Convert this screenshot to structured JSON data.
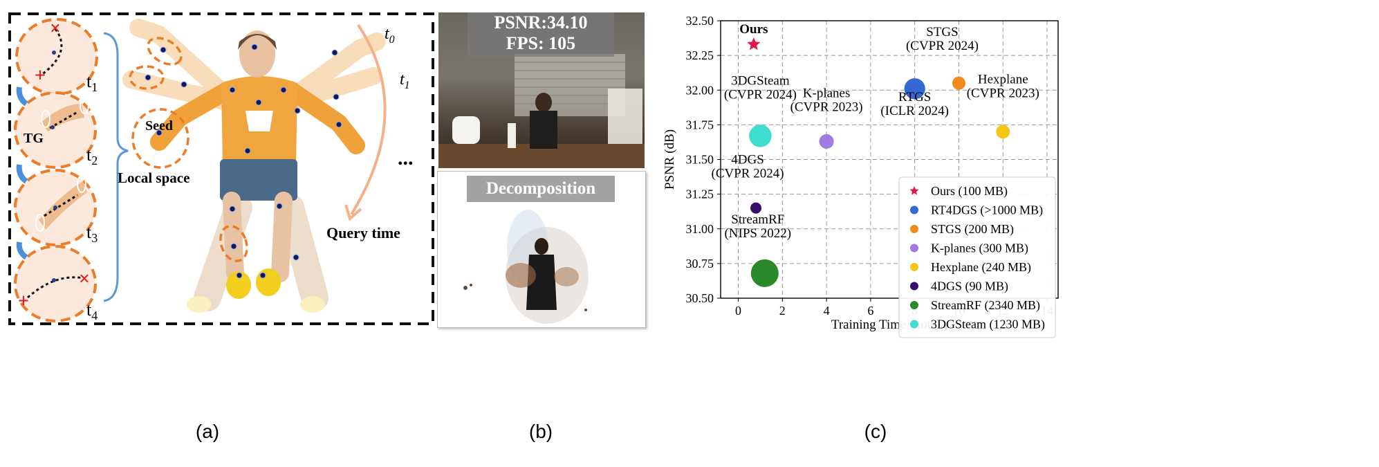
{
  "panel_a": {
    "labels": {
      "t1": "t",
      "t1_sub": "1",
      "t2": "t",
      "t2_sub": "2",
      "t3": "t",
      "t3_sub": "3",
      "t4": "t",
      "t4_sub": "4",
      "tg": "TG",
      "seed": "Seed",
      "local_space": "Local space",
      "query_time": "Query time",
      "t0_top": "t",
      "t0_top_sub": "0",
      "t1_top": "t",
      "t1_top_sub": "1",
      "ellipsis": "..."
    },
    "caption": "(a)"
  },
  "panel_b": {
    "psnr": "PSNR:34.10",
    "fps": "FPS: 105",
    "decomposition": "Decomposition",
    "caption": "(b)"
  },
  "panel_c": {
    "caption": "(c)"
  },
  "chart_data": {
    "type": "scatter",
    "xlabel": "Training Time (hours)",
    "ylabel": "PSNR (dB)",
    "xlim": [
      -0.8,
      14.5
    ],
    "ylim": [
      30.5,
      32.5
    ],
    "xticks": [
      0,
      2,
      4,
      6,
      8,
      10,
      12,
      14
    ],
    "yticks": [
      30.5,
      30.75,
      31.0,
      31.25,
      31.5,
      31.75,
      32.0,
      32.25,
      32.5
    ],
    "ytick_labels": [
      "30.50",
      "30.75",
      "31.00",
      "31.25",
      "31.50",
      "31.75",
      "32.00",
      "32.25",
      "32.50"
    ],
    "grid": true,
    "legend_position": "lower-right",
    "series": [
      {
        "name": "Ours (100 MB)",
        "x": 0.7,
        "y": 32.33,
        "color": "#d81b4a",
        "marker": "star",
        "size_mb": 100,
        "annotation": [
          "Ours"
        ],
        "annotation_bold": true
      },
      {
        "name": "RT4DGS (>1000 MB)",
        "x": 8.0,
        "y": 32.01,
        "color": "#3568d4",
        "marker": "circle",
        "size_mb": 1000,
        "annotation": [
          "RTGS",
          "(ICLR 2024)"
        ]
      },
      {
        "name": "STGS (200 MB)",
        "x": 10.0,
        "y": 32.05,
        "color": "#f08a1c",
        "marker": "circle",
        "size_mb": 200,
        "annotation": [
          "STGS",
          "(CVPR 2024)"
        ]
      },
      {
        "name": "K-planes (300 MB)",
        "x": 4.0,
        "y": 31.63,
        "color": "#a07ce0",
        "marker": "circle",
        "size_mb": 300,
        "annotation": [
          "K-planes",
          "(CVPR 2023)"
        ]
      },
      {
        "name": "Hexplane (240 MB)",
        "x": 12.0,
        "y": 31.7,
        "color": "#f5c518",
        "marker": "circle",
        "size_mb": 240,
        "annotation": [
          "Hexplane",
          "(CVPR 2023)"
        ]
      },
      {
        "name": "4DGS (90 MB)",
        "x": 0.8,
        "y": 31.15,
        "color": "#3b0e6e",
        "marker": "circle",
        "size_mb": 90,
        "annotation": [
          "4DGS",
          "(CVPR 2024)"
        ]
      },
      {
        "name": "StreamRF (2340 MB)",
        "x": 1.2,
        "y": 30.68,
        "color": "#2a8a2a",
        "marker": "circle",
        "size_mb": 2340,
        "annotation": [
          "StreamRF",
          "(NIPS 2022)"
        ]
      },
      {
        "name": "3DGSteam (1230 MB)",
        "x": 1.0,
        "y": 31.67,
        "color": "#3fdcd0",
        "marker": "circle",
        "size_mb": 1230,
        "annotation": [
          "3DGSteam",
          "(CVPR 2024)"
        ]
      }
    ]
  }
}
